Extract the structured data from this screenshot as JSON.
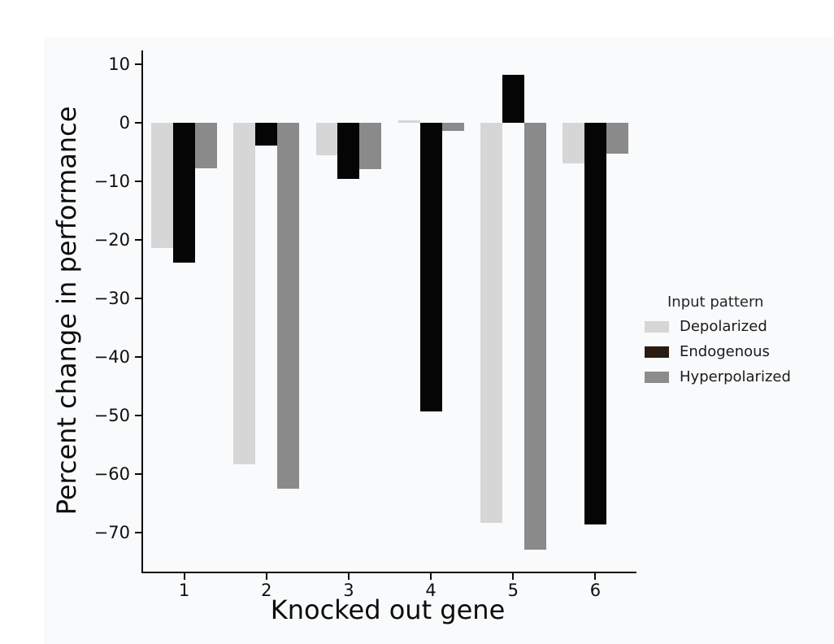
{
  "figure": {
    "page_background": "#ffffff",
    "figure_background": "#f9fafb",
    "spine_color": "#0a0a0a",
    "tick_color": "#0a0a0a"
  },
  "chart_data": {
    "type": "bar",
    "title": "",
    "xlabel": "Knocked out gene",
    "ylabel": "Percent change in performance",
    "categories": [
      "1",
      "2",
      "3",
      "4",
      "5",
      "6"
    ],
    "series": [
      {
        "name": "Depolarized",
        "color": "#d6d6d6",
        "legend_swatch_color": "#d6d6d6",
        "values": [
          -21.4,
          -58.3,
          -5.5,
          0.4,
          -68.4,
          -6.9
        ]
      },
      {
        "name": "Endogenous",
        "color": "#050505",
        "legend_swatch_color": "#2a1b12",
        "values": [
          -23.9,
          -3.9,
          -9.6,
          -49.3,
          8.2,
          -68.6
        ]
      },
      {
        "name": "Hyperpolarized",
        "color": "#8a8a8a",
        "legend_swatch_color": "#8c8c8c",
        "values": [
          -7.8,
          -62.5,
          -7.9,
          -1.3,
          -72.9,
          -5.2
        ]
      }
    ],
    "yticks": [
      10,
      0,
      -10,
      -20,
      -30,
      -40,
      -50,
      -60,
      -70
    ],
    "ylim": [
      -76.7,
      12.4
    ],
    "group_inner_width_fraction": 0.8,
    "grid": false,
    "legend": {
      "title": "Input pattern",
      "position": "center-right",
      "frame": false
    }
  }
}
